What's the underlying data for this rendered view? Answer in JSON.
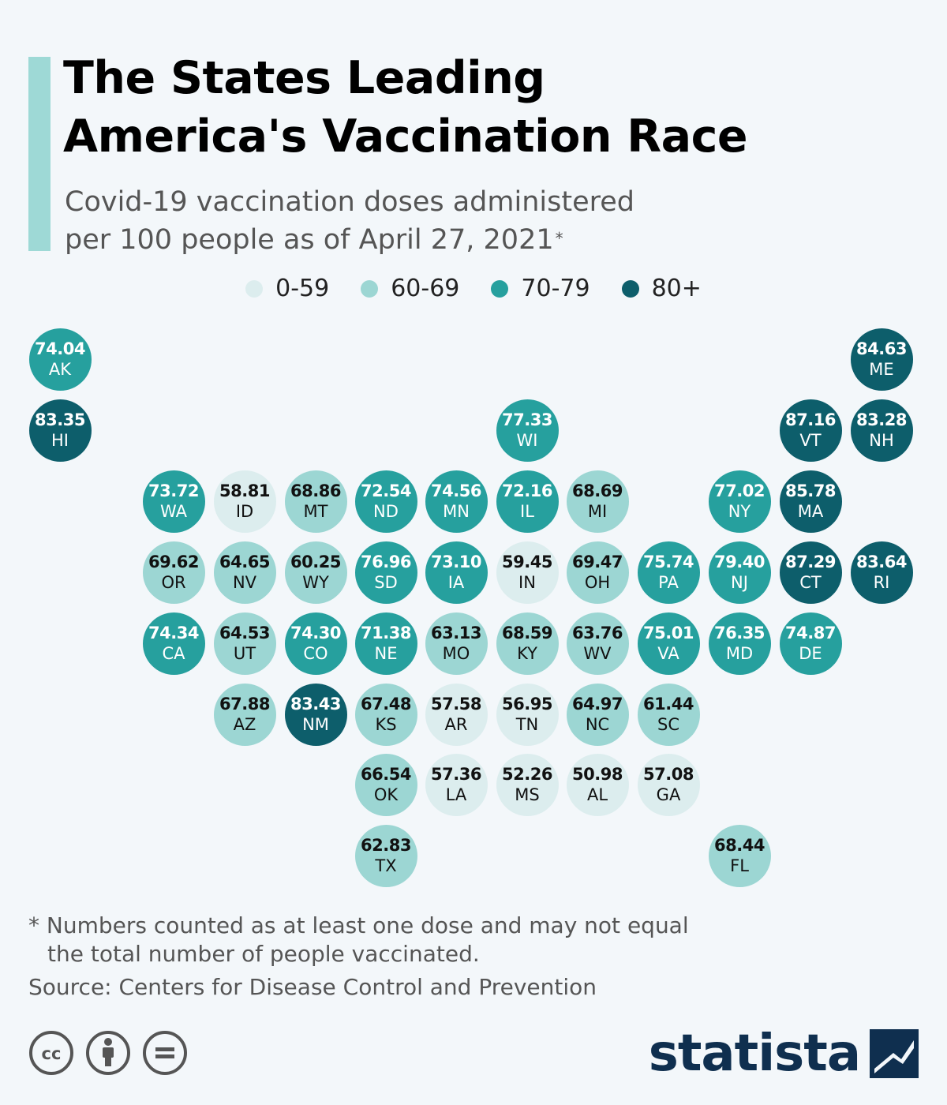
{
  "title_line1": "The States Leading",
  "title_line2": "America's Vaccination Race",
  "subtitle_line1": "Covid-19 vaccination doses administered",
  "subtitle_line2": "per 100 people as of April 27, 2021",
  "subtitle_mark": "*",
  "colors": {
    "c0": "#dcedee",
    "c1": "#9cd6d3",
    "c2": "#26a09e",
    "c3": "#0d5e6b",
    "accent": "#9ed9d6",
    "brand": "#0f2f4f"
  },
  "legend": [
    {
      "label": "0-59",
      "bin": "c0"
    },
    {
      "label": "60-69",
      "bin": "c1"
    },
    {
      "label": "70-79",
      "bin": "c2"
    },
    {
      "label": "80+",
      "bin": "c3"
    }
  ],
  "chart_data": {
    "type": "tile-map",
    "unit": "doses per 100 people",
    "bins": [
      {
        "label": "0-59",
        "min": 0,
        "max": 59.99
      },
      {
        "label": "60-69",
        "min": 60,
        "max": 69.99
      },
      {
        "label": "70-79",
        "min": 70,
        "max": 79.99
      },
      {
        "label": "80+",
        "min": 80,
        "max": 1000
      }
    ],
    "states": [
      {
        "abbr": "AK",
        "value": "74.04",
        "row": 0,
        "col": 0
      },
      {
        "abbr": "ME",
        "value": "84.63",
        "row": 0,
        "col": 12
      },
      {
        "abbr": "HI",
        "value": "83.35",
        "row": 1,
        "col": 0
      },
      {
        "abbr": "WI",
        "value": "77.33",
        "row": 1,
        "col": 7
      },
      {
        "abbr": "VT",
        "value": "87.16",
        "row": 1,
        "col": 11
      },
      {
        "abbr": "NH",
        "value": "83.28",
        "row": 1,
        "col": 12
      },
      {
        "abbr": "WA",
        "value": "73.72",
        "row": 2,
        "col": 2
      },
      {
        "abbr": "ID",
        "value": "58.81",
        "row": 2,
        "col": 3
      },
      {
        "abbr": "MT",
        "value": "68.86",
        "row": 2,
        "col": 4
      },
      {
        "abbr": "ND",
        "value": "72.54",
        "row": 2,
        "col": 5
      },
      {
        "abbr": "MN",
        "value": "74.56",
        "row": 2,
        "col": 6
      },
      {
        "abbr": "IL",
        "value": "72.16",
        "row": 2,
        "col": 7
      },
      {
        "abbr": "MI",
        "value": "68.69",
        "row": 2,
        "col": 8
      },
      {
        "abbr": "NY",
        "value": "77.02",
        "row": 2,
        "col": 10
      },
      {
        "abbr": "MA",
        "value": "85.78",
        "row": 2,
        "col": 11
      },
      {
        "abbr": "OR",
        "value": "69.62",
        "row": 3,
        "col": 2
      },
      {
        "abbr": "NV",
        "value": "64.65",
        "row": 3,
        "col": 3
      },
      {
        "abbr": "WY",
        "value": "60.25",
        "row": 3,
        "col": 4
      },
      {
        "abbr": "SD",
        "value": "76.96",
        "row": 3,
        "col": 5
      },
      {
        "abbr": "IA",
        "value": "73.10",
        "row": 3,
        "col": 6
      },
      {
        "abbr": "IN",
        "value": "59.45",
        "row": 3,
        "col": 7
      },
      {
        "abbr": "OH",
        "value": "69.47",
        "row": 3,
        "col": 8
      },
      {
        "abbr": "PA",
        "value": "75.74",
        "row": 3,
        "col": 9
      },
      {
        "abbr": "NJ",
        "value": "79.40",
        "row": 3,
        "col": 10
      },
      {
        "abbr": "CT",
        "value": "87.29",
        "row": 3,
        "col": 11
      },
      {
        "abbr": "RI",
        "value": "83.64",
        "row": 3,
        "col": 12
      },
      {
        "abbr": "CA",
        "value": "74.34",
        "row": 4,
        "col": 2
      },
      {
        "abbr": "UT",
        "value": "64.53",
        "row": 4,
        "col": 3
      },
      {
        "abbr": "CO",
        "value": "74.30",
        "row": 4,
        "col": 4
      },
      {
        "abbr": "NE",
        "value": "71.38",
        "row": 4,
        "col": 5
      },
      {
        "abbr": "MO",
        "value": "63.13",
        "row": 4,
        "col": 6
      },
      {
        "abbr": "KY",
        "value": "68.59",
        "row": 4,
        "col": 7
      },
      {
        "abbr": "WV",
        "value": "63.76",
        "row": 4,
        "col": 8
      },
      {
        "abbr": "VA",
        "value": "75.01",
        "row": 4,
        "col": 9
      },
      {
        "abbr": "MD",
        "value": "76.35",
        "row": 4,
        "col": 10
      },
      {
        "abbr": "DE",
        "value": "74.87",
        "row": 4,
        "col": 11
      },
      {
        "abbr": "AZ",
        "value": "67.88",
        "row": 5,
        "col": 3
      },
      {
        "abbr": "NM",
        "value": "83.43",
        "row": 5,
        "col": 4
      },
      {
        "abbr": "KS",
        "value": "67.48",
        "row": 5,
        "col": 5
      },
      {
        "abbr": "AR",
        "value": "57.58",
        "row": 5,
        "col": 6
      },
      {
        "abbr": "TN",
        "value": "56.95",
        "row": 5,
        "col": 7
      },
      {
        "abbr": "NC",
        "value": "64.97",
        "row": 5,
        "col": 8
      },
      {
        "abbr": "SC",
        "value": "61.44",
        "row": 5,
        "col": 9
      },
      {
        "abbr": "OK",
        "value": "66.54",
        "row": 6,
        "col": 5
      },
      {
        "abbr": "LA",
        "value": "57.36",
        "row": 6,
        "col": 6
      },
      {
        "abbr": "MS",
        "value": "52.26",
        "row": 6,
        "col": 7
      },
      {
        "abbr": "AL",
        "value": "50.98",
        "row": 6,
        "col": 8
      },
      {
        "abbr": "GA",
        "value": "57.08",
        "row": 6,
        "col": 9
      },
      {
        "abbr": "TX",
        "value": "62.83",
        "row": 7,
        "col": 5
      },
      {
        "abbr": "FL",
        "value": "68.44",
        "row": 7,
        "col": 10
      }
    ]
  },
  "footnote_line1": "* Numbers counted as at least one dose and may not equal",
  "footnote_line2": "the total number of people vaccinated.",
  "source": "Source: Centers for Disease Control and Prevention",
  "license_icons": [
    "creative-commons-icon",
    "attribution-icon",
    "no-derivatives-icon"
  ],
  "brand": "statista"
}
